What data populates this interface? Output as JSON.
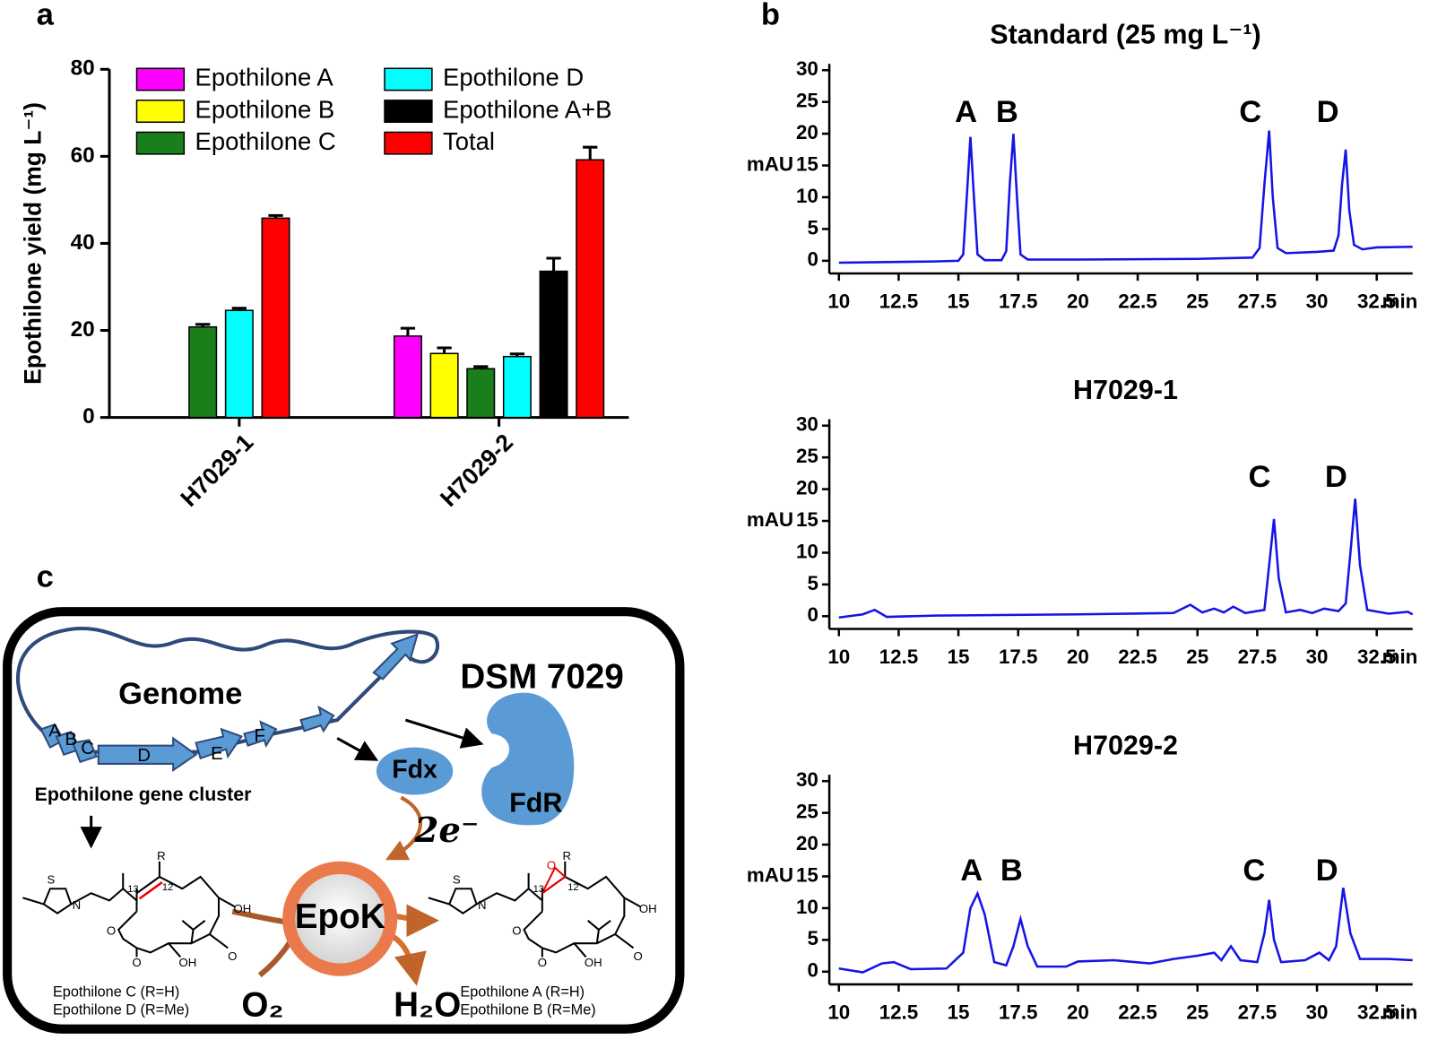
{
  "panels": [
    "a",
    "b",
    "c"
  ],
  "chart_data": [
    {
      "type": "bar",
      "y_label": "Epothilone yield (mg L⁻¹)",
      "categories": [
        "H7029-1",
        "H7029-2"
      ],
      "series": [
        {
          "name": "Epothilone A",
          "color": "#ff00ff",
          "values": [
            null,
            18.7
          ],
          "errors": [
            null,
            1.8
          ]
        },
        {
          "name": "Epothilone B",
          "color": "#ffff00",
          "values": [
            null,
            14.7
          ],
          "errors": [
            null,
            1.3
          ]
        },
        {
          "name": "Epothilone C",
          "color": "#1a7f1a",
          "values": [
            20.8,
            11.2
          ],
          "errors": [
            0.6,
            0.5
          ]
        },
        {
          "name": "Epothilone D",
          "color": "#00ffff",
          "values": [
            24.6,
            14.0
          ],
          "errors": [
            0.5,
            0.6
          ]
        },
        {
          "name": "Epothilone A+B",
          "color": "#000000",
          "values": [
            null,
            33.6
          ],
          "errors": [
            null,
            3.0
          ]
        },
        {
          "name": "Total",
          "color": "#ff0000",
          "values": [
            45.8,
            59.2
          ],
          "errors": [
            0.6,
            2.9
          ]
        }
      ],
      "ylim": [
        0,
        80
      ],
      "yticks": [
        0,
        20,
        40,
        60,
        80
      ]
    },
    {
      "type": "line",
      "title": "Standard (25 mg L⁻¹)",
      "y_label": "mAU",
      "x_label": "min",
      "color": "#1414e6",
      "x": [
        10,
        12,
        14,
        15,
        15.2,
        15.35,
        15.5,
        15.65,
        15.8,
        16.1,
        16.8,
        17.0,
        17.15,
        17.3,
        17.45,
        17.6,
        17.9,
        20,
        25,
        27.3,
        27.6,
        27.8,
        28.0,
        28.15,
        28.35,
        28.7,
        30,
        30.7,
        30.9,
        31.05,
        31.2,
        31.35,
        31.55,
        31.9,
        32.5,
        34
      ],
      "values": [
        -0.3,
        -0.2,
        -0.1,
        0,
        1,
        10,
        19.5,
        10,
        1,
        0.1,
        0.1,
        1.5,
        12,
        20,
        10,
        1,
        0.2,
        0.2,
        0.3,
        0.5,
        2,
        12,
        20.5,
        10,
        2,
        1.2,
        1.4,
        1.6,
        4,
        12,
        17.5,
        8,
        2.5,
        1.8,
        2.1,
        2.2
      ],
      "annotations": [
        "A",
        "B",
        "C",
        "D"
      ],
      "xlim": [
        9.6,
        34
      ],
      "xticks": [
        10,
        12.5,
        15,
        17.5,
        20,
        22.5,
        25,
        27.5,
        30,
        32.5
      ],
      "ylim": [
        -2,
        31
      ],
      "yticks": [
        0,
        5,
        10,
        15,
        20,
        25,
        30
      ]
    },
    {
      "type": "line",
      "title": "H7029-1",
      "y_label": "mAU",
      "x_label": "min",
      "color": "#1414e6",
      "x": [
        10,
        11,
        11.5,
        12,
        14,
        20,
        24,
        24.7,
        25.2,
        25.7,
        26.1,
        26.5,
        27,
        27.8,
        28.0,
        28.2,
        28.4,
        28.7,
        29.3,
        29.8,
        30.3,
        30.9,
        31.2,
        31.4,
        31.6,
        31.8,
        32.1,
        33,
        33.8,
        34
      ],
      "values": [
        -0.2,
        0.3,
        1,
        -0.1,
        0.1,
        0.3,
        0.5,
        1.8,
        0.6,
        1.2,
        0.6,
        1.5,
        0.5,
        1,
        8,
        15.3,
        6,
        0.6,
        1,
        0.5,
        1.2,
        0.8,
        2,
        10,
        18.5,
        8,
        1,
        0.4,
        0.7,
        0.3
      ],
      "annotations": [
        "C",
        "D"
      ],
      "xlim": [
        9.6,
        34
      ],
      "xticks": [
        10,
        12.5,
        15,
        17.5,
        20,
        22.5,
        25,
        27.5,
        30,
        32.5
      ],
      "ylim": [
        -2,
        31
      ],
      "yticks": [
        0,
        5,
        10,
        15,
        20,
        25,
        30
      ]
    },
    {
      "type": "line",
      "title": "H7029-2",
      "y_label": "mAU",
      "x_label": "min",
      "color": "#1414e6",
      "x": [
        10,
        11,
        11.8,
        12.3,
        13,
        14.5,
        15.2,
        15.5,
        15.8,
        16.1,
        16.5,
        17.0,
        17.3,
        17.6,
        17.9,
        18.3,
        19.5,
        20,
        21.5,
        23,
        24,
        25,
        25.7,
        26.0,
        26.4,
        26.8,
        27.5,
        27.8,
        28.0,
        28.2,
        28.5,
        29.5,
        30.1,
        30.5,
        30.8,
        31.1,
        31.4,
        31.8,
        33,
        34
      ],
      "values": [
        0.5,
        -0.1,
        1.3,
        1.5,
        0.4,
        0.5,
        3,
        10,
        12.3,
        9,
        1.5,
        1,
        4,
        8.3,
        4,
        0.8,
        0.8,
        1.6,
        1.8,
        1.3,
        2,
        2.5,
        3,
        1.8,
        4,
        1.8,
        1.5,
        6,
        11.3,
        5,
        1.5,
        1.8,
        3,
        1.8,
        4,
        13.2,
        6,
        2,
        2,
        1.8
      ],
      "annotations": [
        "A",
        "B",
        "C",
        "D"
      ],
      "xlim": [
        9.6,
        34
      ],
      "xticks": [
        10,
        12.5,
        15,
        17.5,
        20,
        22.5,
        25,
        27.5,
        30,
        32.5
      ],
      "ylim": [
        -2,
        31
      ],
      "yticks": [
        0,
        5,
        10,
        15,
        20,
        25,
        30
      ]
    }
  ],
  "diagram": {
    "organism": "DSM 7029",
    "genome": "Genome",
    "genes": [
      "A",
      "B",
      "C",
      "D",
      "E",
      "F"
    ],
    "cluster": "Epothilone gene cluster",
    "fdx": "Fdx",
    "fdr": "FdR",
    "electrons": "2e⁻",
    "enzyme": "EpoK",
    "substrate": "O₂",
    "product": "H₂O",
    "left_compounds": [
      "Epothilone C (R=H)",
      "Epothilone D (R=Me)"
    ],
    "right_compounds": [
      "Epothilone A (R=H)",
      "Epothilone B (R=Me)"
    ],
    "left_atoms": [
      "S",
      "N",
      "R",
      "13",
      "12",
      "OH",
      "O",
      "O",
      "OH",
      "O"
    ],
    "right_atoms": [
      "S",
      "N",
      "R",
      "13",
      "12",
      "OH",
      "O",
      "O",
      "OH",
      "O",
      "O"
    ]
  }
}
